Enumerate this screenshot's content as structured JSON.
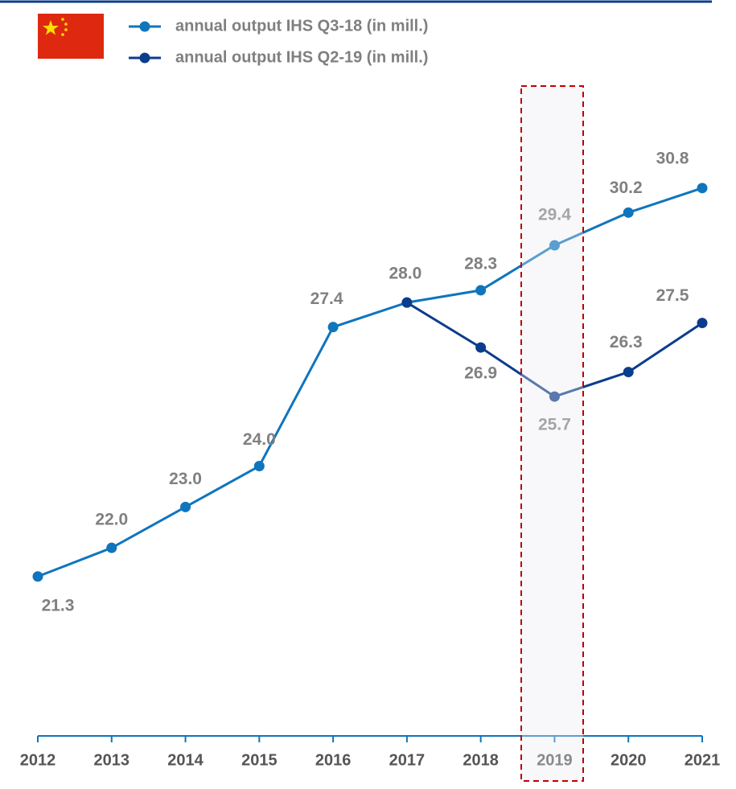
{
  "chart_data": {
    "type": "line",
    "categories": [
      "2012",
      "2013",
      "2014",
      "2015",
      "2016",
      "2017",
      "2018",
      "2019",
      "2020",
      "2021"
    ],
    "series": [
      {
        "name": "annual output IHS Q3-18 (in mill.)",
        "color": "#0f75bd",
        "values": [
          21.3,
          22.0,
          23.0,
          24.0,
          27.4,
          28.0,
          28.3,
          29.4,
          30.2,
          30.8
        ],
        "value_labels": [
          "21.3",
          "22.0",
          "23.0",
          "24.0",
          "27.4",
          "28.0",
          "28.3",
          "29.4",
          "30.2",
          "30.8"
        ]
      },
      {
        "name": "annual output IHS Q2-19 (in mill.)",
        "color": "#0b3d8c",
        "values": [
          null,
          null,
          null,
          null,
          null,
          28.0,
          26.9,
          25.7,
          26.3,
          27.5
        ],
        "value_labels": [
          null,
          null,
          null,
          null,
          null,
          null,
          "26.9",
          "25.7",
          "26.3",
          "27.5"
        ]
      }
    ],
    "ylim": [
      17.4,
      35.4
    ]
  }
}
